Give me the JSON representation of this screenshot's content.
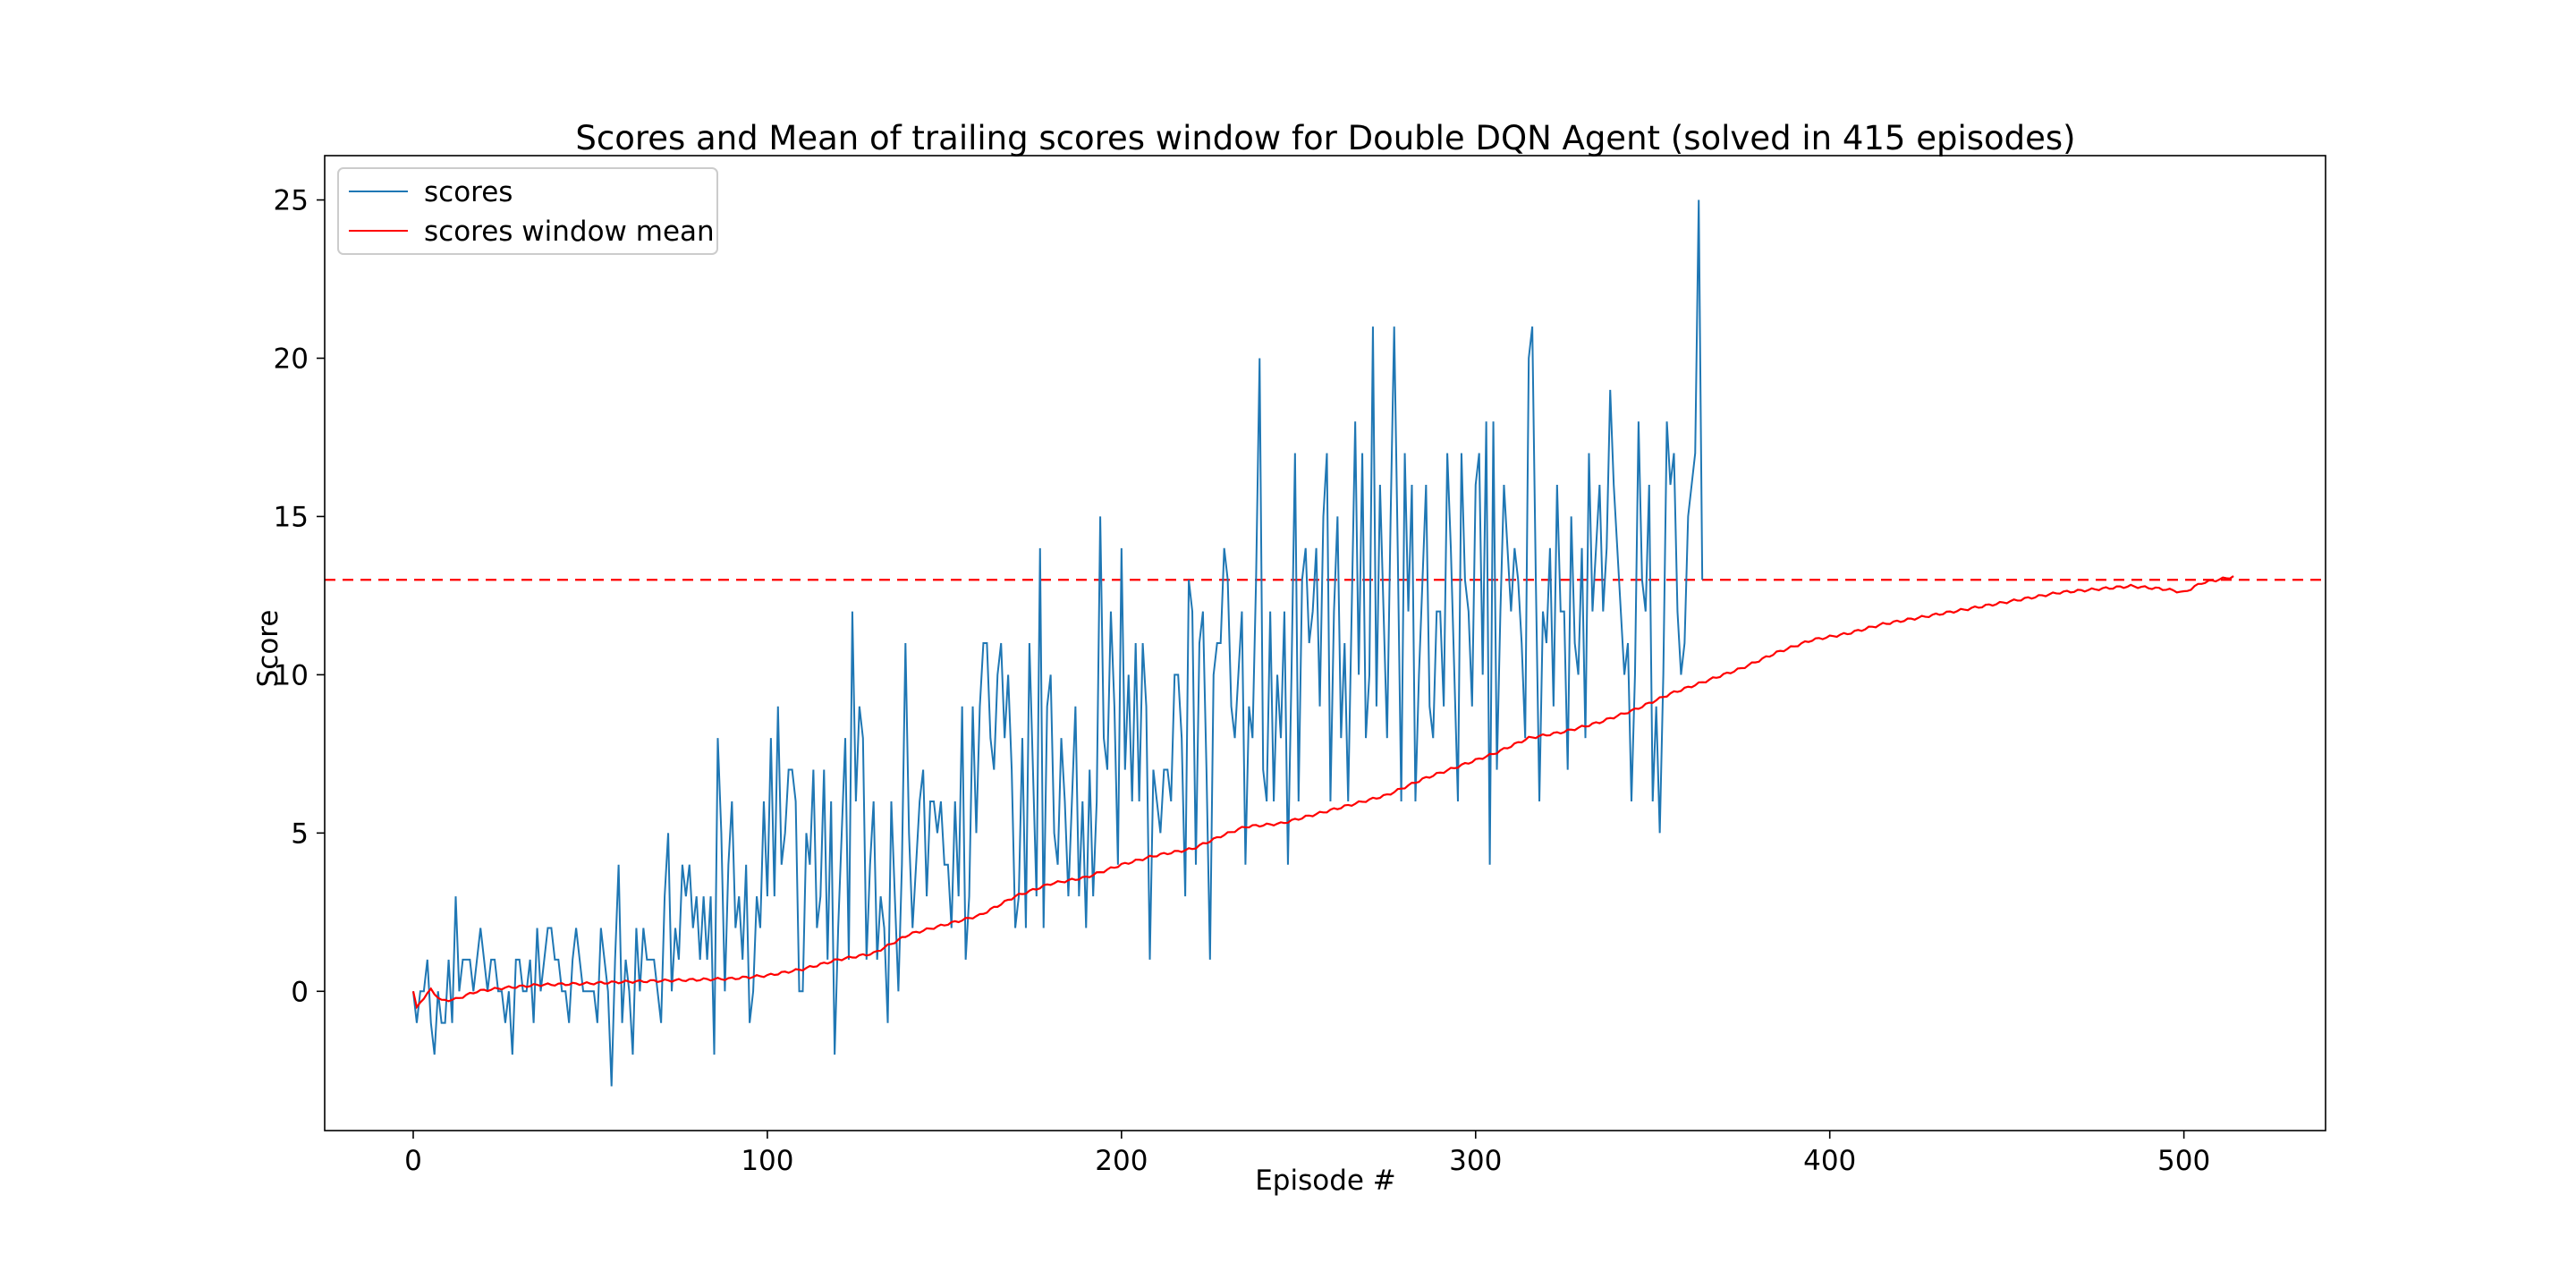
{
  "chart_data": {
    "type": "line",
    "title": "Scores and Mean of trailing scores window for Double DQN Agent (solved in 415 episodes)",
    "xlabel": "Episode #",
    "ylabel": "Score",
    "xlim": [
      -25,
      540
    ],
    "ylim": [
      -4.4,
      26.4
    ],
    "xticks": [
      0,
      100,
      200,
      300,
      400,
      500
    ],
    "yticks": [
      0,
      5,
      10,
      15,
      20,
      25
    ],
    "grid": false,
    "legend_position": "top-left",
    "threshold": {
      "value": 13,
      "style": "dashed",
      "color": "#ff0000"
    },
    "series": [
      {
        "name": "scores",
        "color": "#1f77b4",
        "y": [
          0,
          -1,
          0,
          0,
          1,
          -1,
          -2,
          0,
          -1,
          -1,
          1,
          -1,
          3,
          0,
          1,
          1,
          1,
          0,
          1,
          2,
          1,
          0,
          1,
          1,
          0,
          0,
          -1,
          0,
          -2,
          1,
          1,
          0,
          0,
          1,
          -1,
          2,
          0,
          1,
          2,
          2,
          1,
          1,
          0,
          0,
          -1,
          1,
          2,
          1,
          0,
          0,
          0,
          0,
          -1,
          2,
          1,
          0,
          -3,
          1,
          4,
          -1,
          1,
          0,
          -2,
          2,
          0,
          2,
          1,
          1,
          1,
          0,
          -1,
          3,
          5,
          0,
          2,
          1,
          4,
          3,
          4,
          2,
          3,
          1,
          3,
          1,
          3,
          -2,
          8,
          5,
          0,
          4,
          6,
          2,
          3,
          1,
          4,
          -1,
          0,
          3,
          2,
          6,
          3,
          8,
          3,
          9,
          4,
          5,
          7,
          7,
          6,
          0,
          0,
          5,
          4,
          7,
          2,
          3,
          7,
          1,
          6,
          -2,
          2,
          5,
          8,
          1,
          12,
          6,
          9,
          8,
          1,
          4,
          6,
          1,
          3,
          2,
          -1,
          6,
          3,
          0,
          4,
          11,
          5,
          2,
          4,
          6,
          7,
          3,
          6,
          6,
          5,
          6,
          4,
          4,
          2,
          6,
          3,
          9,
          1,
          3,
          9,
          5,
          9,
          11,
          11,
          8,
          7,
          10,
          11,
          8,
          10,
          7,
          2,
          3,
          8,
          2,
          11,
          7,
          3,
          14,
          2,
          9,
          10,
          5,
          4,
          8,
          6,
          3,
          6,
          9,
          3,
          6,
          2,
          7,
          3,
          6,
          15,
          8,
          7,
          12,
          9,
          4,
          14,
          7,
          10,
          6,
          11,
          6,
          11,
          9,
          1,
          7,
          6,
          5,
          7,
          7,
          6,
          10,
          10,
          8,
          3,
          13,
          12,
          4,
          11,
          12,
          7,
          1,
          10,
          11,
          11,
          14,
          13,
          9,
          8,
          10,
          12,
          4,
          9,
          8,
          13,
          20,
          7,
          6,
          12,
          6,
          10,
          8,
          12,
          4,
          10,
          17,
          6,
          13,
          14,
          11,
          12,
          14,
          9,
          15,
          17,
          6,
          12,
          15,
          8,
          11,
          6,
          12,
          18,
          10,
          17,
          8,
          10,
          21,
          9,
          16,
          12,
          8,
          15,
          21,
          14,
          6,
          17,
          12,
          16,
          6,
          10,
          13,
          16,
          9,
          8,
          12,
          12,
          9,
          17,
          14,
          10,
          6,
          17,
          13,
          12,
          9,
          16,
          17,
          10,
          18,
          4,
          18,
          7,
          12,
          16,
          14,
          12,
          14,
          13,
          11,
          8,
          20,
          21,
          13,
          6,
          12,
          11,
          14,
          9,
          16,
          12,
          12,
          7,
          15,
          11,
          10,
          14,
          8,
          17,
          12,
          14,
          16,
          12,
          14,
          19,
          16,
          14,
          12,
          10,
          11,
          6,
          10,
          18,
          13,
          12,
          16,
          6,
          9,
          5,
          10,
          18,
          16,
          17,
          12,
          10,
          11,
          15,
          16,
          17,
          25,
          13
        ]
      },
      {
        "name": "scores window mean",
        "color": "#ff0000",
        "keyframes": [
          [
            0,
            0
          ],
          [
            1,
            -0.5
          ],
          [
            3,
            -0.2
          ],
          [
            5,
            0.05
          ],
          [
            8,
            -0.3
          ],
          [
            12,
            -0.25
          ],
          [
            18,
            0.0
          ],
          [
            25,
            0.1
          ],
          [
            35,
            0.2
          ],
          [
            50,
            0.25
          ],
          [
            60,
            0.3
          ],
          [
            75,
            0.35
          ],
          [
            90,
            0.4
          ],
          [
            100,
            0.5
          ],
          [
            110,
            0.7
          ],
          [
            120,
            1.0
          ],
          [
            130,
            1.2
          ],
          [
            140,
            1.8
          ],
          [
            150,
            2.1
          ],
          [
            160,
            2.4
          ],
          [
            170,
            3.0
          ],
          [
            180,
            3.4
          ],
          [
            190,
            3.6
          ],
          [
            200,
            4.0
          ],
          [
            210,
            4.3
          ],
          [
            220,
            4.5
          ],
          [
            228,
            4.9
          ],
          [
            235,
            5.2
          ],
          [
            245,
            5.3
          ],
          [
            255,
            5.6
          ],
          [
            265,
            5.9
          ],
          [
            275,
            6.2
          ],
          [
            285,
            6.7
          ],
          [
            295,
            7.1
          ],
          [
            305,
            7.5
          ],
          [
            315,
            8.0
          ],
          [
            325,
            8.2
          ],
          [
            335,
            8.5
          ],
          [
            345,
            8.9
          ],
          [
            355,
            9.4
          ],
          [
            365,
            9.8
          ],
          [
            375,
            10.2
          ],
          [
            385,
            10.7
          ],
          [
            395,
            11.1
          ],
          [
            405,
            11.3
          ],
          [
            415,
            11.6
          ],
          [
            425,
            11.8
          ],
          [
            435,
            12.0
          ],
          [
            445,
            12.2
          ],
          [
            455,
            12.4
          ],
          [
            465,
            12.6
          ],
          [
            475,
            12.7
          ],
          [
            485,
            12.8
          ],
          [
            495,
            12.7
          ],
          [
            500,
            12.6
          ],
          [
            505,
            12.9
          ],
          [
            514,
            13.1
          ]
        ]
      }
    ]
  }
}
